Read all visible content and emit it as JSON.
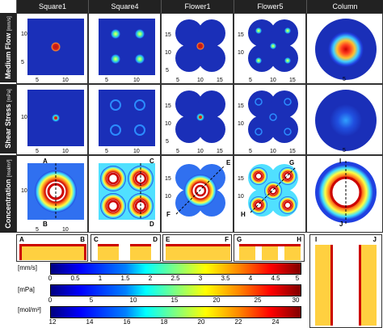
{
  "columns": [
    "Square1",
    "Square4",
    "Flower1",
    "Flower5",
    "Column"
  ],
  "rows": {
    "flow": {
      "title": "Medium Flow",
      "unit": "[mm/s]"
    },
    "shear": {
      "title": "Shear Stress",
      "unit": "[mPa]"
    },
    "conc": {
      "title": "Concentration",
      "unit": "[mol/m³]"
    }
  },
  "ticks": {
    "five": "5",
    "ten": "10",
    "fifteen": "15"
  },
  "markers": {
    "A": "A",
    "B": "B",
    "C": "C",
    "D": "D",
    "E": "E",
    "F": "F",
    "G": "G",
    "H": "H",
    "I": "I",
    "J": "J"
  },
  "colorbars": [
    {
      "unit": "[mm/s]",
      "ticks": [
        "0",
        "0.5",
        "1",
        "1.5",
        "2",
        "2.5",
        "3",
        "3.5",
        "4",
        "4.5",
        "5"
      ]
    },
    {
      "unit": "[mPa]",
      "ticks": [
        "0",
        "5",
        "10",
        "15",
        "20",
        "25",
        "30"
      ]
    },
    {
      "unit": "[mol/m³]",
      "ticks": [
        "12",
        "14",
        "16",
        "18",
        "20",
        "22",
        "24"
      ]
    }
  ],
  "colors": {
    "header": "#222222",
    "deep_blue": "#1a2fb8",
    "hot": "#e4201c"
  }
}
